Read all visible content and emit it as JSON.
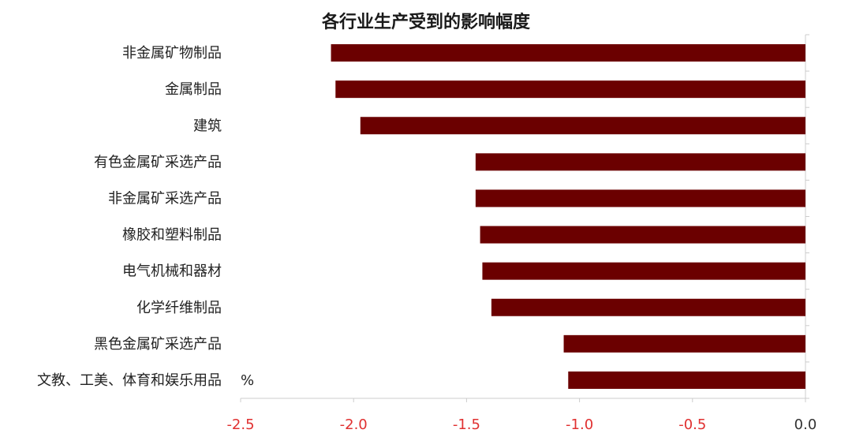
{
  "chart_data": {
    "type": "bar",
    "orientation": "horizontal",
    "title": "各行业生产受到的影响幅度",
    "unit": "%",
    "categories": [
      "非金属矿物制品",
      "金属制品",
      "建筑",
      "有色金属矿采选产品",
      "非金属矿采选产品",
      "橡胶和塑料制品",
      "电气机械和器材",
      "化学纤维制品",
      "黑色金属矿采选产品",
      "文教、工美、体育和娱乐用品"
    ],
    "values": [
      -2.1,
      -2.08,
      -1.97,
      -1.46,
      -1.46,
      -1.44,
      -1.43,
      -1.39,
      -1.07,
      -1.05
    ],
    "xlim": [
      -2.5,
      0.0
    ],
    "xticks": [
      "-2.5",
      "-2.0",
      "-1.5",
      "-1.0",
      "-0.5",
      "0.0"
    ],
    "bar_color": "#6b0000",
    "tick_label_color": "#e03030",
    "zero_tick_label_color": "#333333"
  }
}
